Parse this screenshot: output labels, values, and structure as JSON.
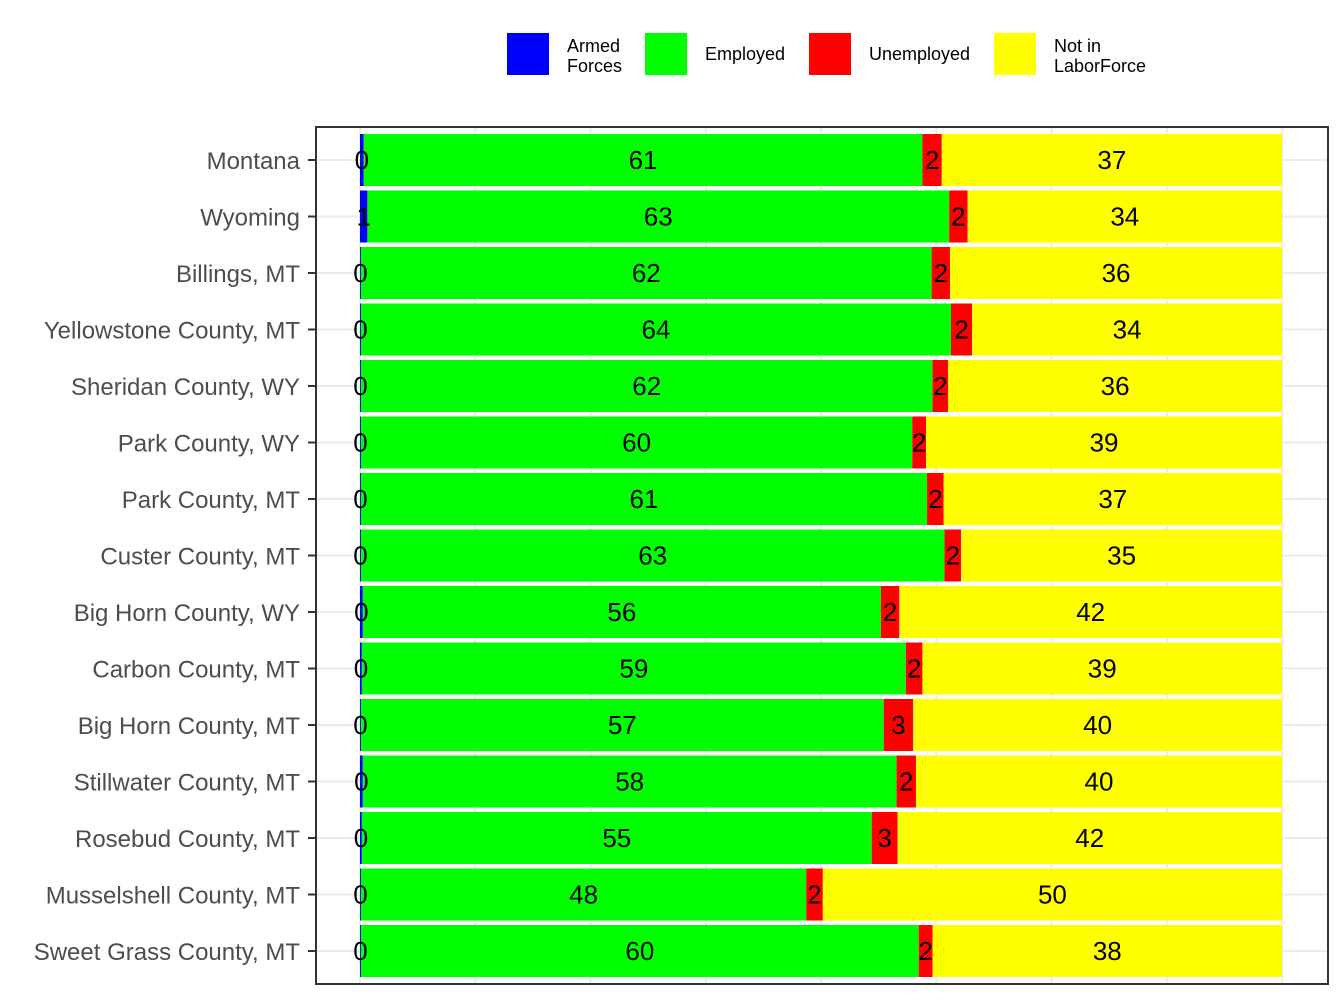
{
  "chart_data": {
    "type": "bar",
    "orientation": "horizontal",
    "stacked": true,
    "normalized_percent": true,
    "title": "",
    "xlabel": "",
    "ylabel": "",
    "xlim": [
      0,
      100
    ],
    "grid": true,
    "legend_position": "top",
    "categories": [
      "Montana",
      "Wyoming",
      "Billings, MT",
      "Yellowstone County, MT",
      "Sheridan County, WY",
      "Park County, WY",
      "Park County, MT",
      "Custer County, MT",
      "Big Horn County, WY",
      "Carbon County, MT",
      "Big Horn County, MT",
      "Stillwater County, MT",
      "Rosebud County, MT",
      "Musselshell County, MT",
      "Sweet Grass County, MT"
    ],
    "series": [
      {
        "name": "Armed Forces",
        "legend_lines": [
          "Armed",
          "Forces"
        ],
        "color": "#0000ff",
        "values": [
          0.4,
          0.8,
          0.1,
          0.1,
          0.1,
          0.1,
          0.1,
          0.1,
          0.3,
          0.2,
          0.1,
          0.3,
          0.2,
          0.1,
          0.1
        ],
        "labels": [
          "0",
          "1",
          "0",
          "0",
          "0",
          "0",
          "0",
          "0",
          "0",
          "0",
          "0",
          "0",
          "0",
          "0",
          "0"
        ]
      },
      {
        "name": "Employed",
        "legend_lines": [
          "Employed"
        ],
        "color": "#00ff00",
        "values": [
          60.6,
          63.1,
          61.9,
          64.0,
          62.0,
          59.8,
          61.4,
          63.3,
          56.2,
          59.0,
          56.7,
          57.9,
          55.3,
          48.3,
          60.5
        ],
        "labels": [
          "61",
          "63",
          "62",
          "64",
          "62",
          "60",
          "61",
          "63",
          "56",
          "59",
          "57",
          "58",
          "55",
          "48",
          "60"
        ]
      },
      {
        "name": "Unemployed",
        "legend_lines": [
          "Unemployed"
        ],
        "color": "#ff0000",
        "values": [
          2.1,
          2.0,
          2.0,
          2.3,
          1.7,
          1.5,
          1.8,
          1.8,
          2.0,
          1.8,
          3.2,
          2.1,
          2.8,
          1.8,
          1.5
        ],
        "labels": [
          "2",
          "2",
          "2",
          "2",
          "2",
          "2",
          "2",
          "2",
          "2",
          "2",
          "3",
          "2",
          "3",
          "2",
          "2"
        ]
      },
      {
        "name": "Not in LaborForce",
        "legend_lines": [
          "Not in",
          "LaborForce"
        ],
        "color": "#ffff00",
        "values": [
          36.9,
          34.1,
          36.0,
          33.6,
          36.2,
          38.6,
          36.7,
          34.8,
          41.5,
          39.0,
          40.0,
          39.7,
          41.7,
          49.8,
          37.9
        ],
        "labels": [
          "37",
          "34",
          "36",
          "34",
          "36",
          "39",
          "37",
          "35",
          "42",
          "39",
          "40",
          "40",
          "42",
          "50",
          "38"
        ]
      }
    ]
  }
}
